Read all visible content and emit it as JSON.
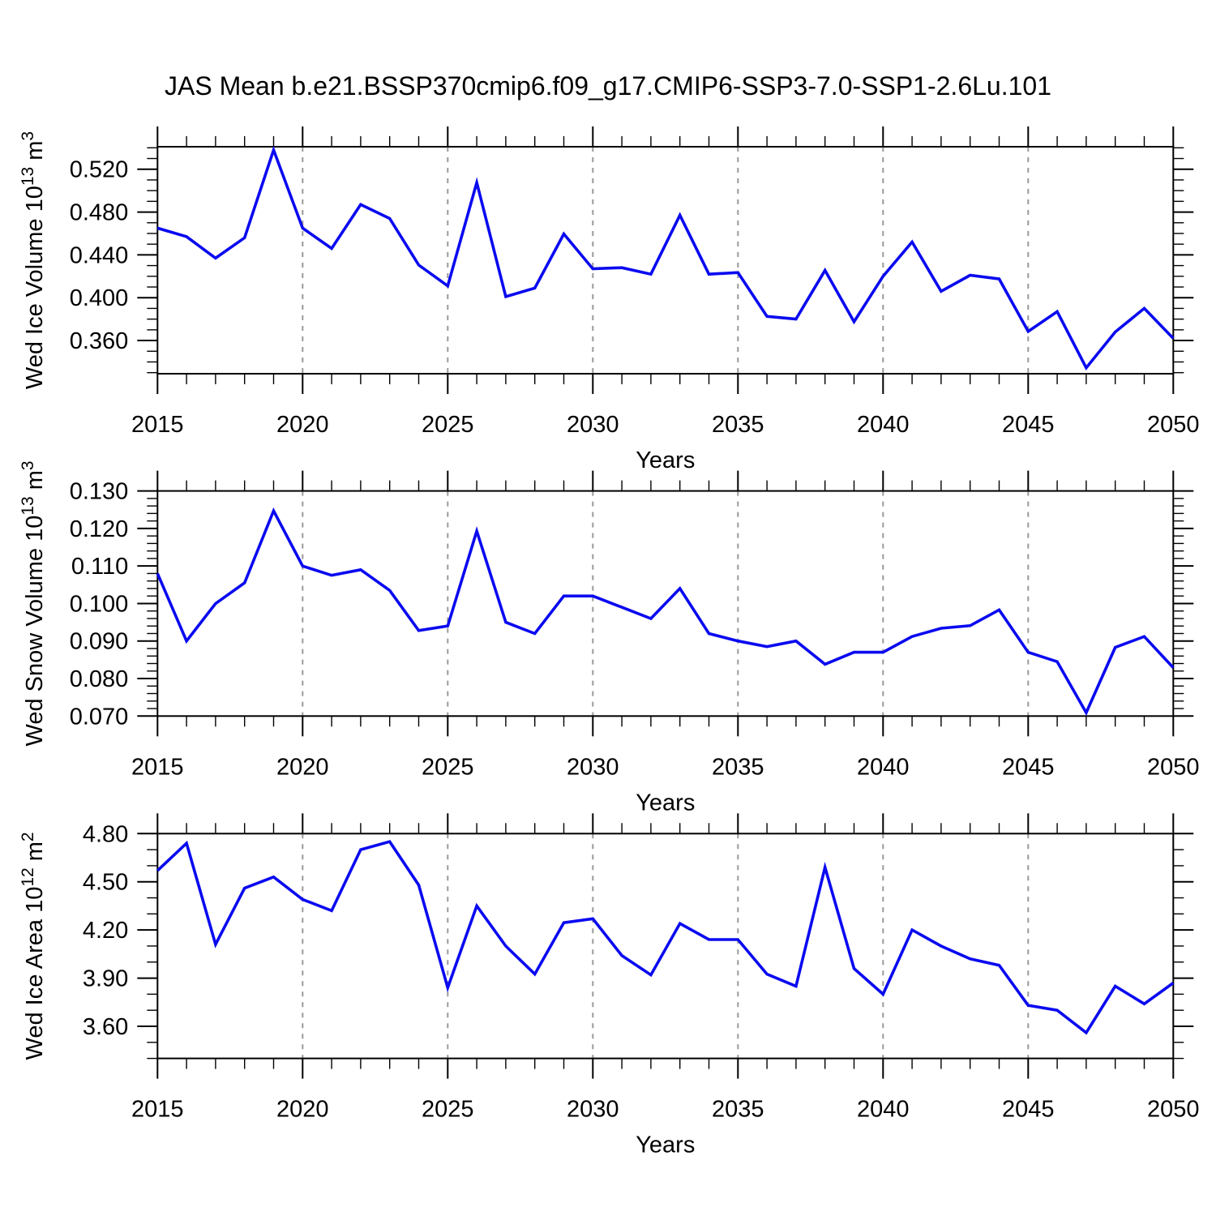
{
  "title": "JAS Mean b.e21.BSSP370cmip6.f09_g17.CMIP6-SSP3-7.0-SSP1-2.6Lu.101",
  "style": {
    "line_color": "#0a0af0",
    "grid_color": "#999999",
    "axis_color": "#000000",
    "text_color": "#000000"
  },
  "chart_data": [
    {
      "type": "line",
      "name": "wed-ice-volume",
      "ylabel_plain": "Wed Ice Volume 10^13 m^3",
      "ylabel_parts": {
        "main": "Wed Ice Volume 10",
        "sup": "13",
        "unit": " m",
        "unit_sup": "3"
      },
      "xlabel": "Years",
      "x": [
        2015,
        2016,
        2017,
        2018,
        2019,
        2020,
        2021,
        2022,
        2023,
        2024,
        2025,
        2026,
        2027,
        2028,
        2029,
        2030,
        2031,
        2032,
        2033,
        2034,
        2035,
        2036,
        2037,
        2038,
        2039,
        2040,
        2041,
        2042,
        2043,
        2044,
        2045,
        2046,
        2047,
        2048,
        2049,
        2050
      ],
      "values": [
        0.465,
        0.457,
        0.437,
        0.456,
        0.538,
        0.465,
        0.446,
        0.487,
        0.474,
        0.4305,
        0.411,
        0.5075,
        0.401,
        0.409,
        0.4595,
        0.427,
        0.428,
        0.422,
        0.477,
        0.422,
        0.4235,
        0.3825,
        0.38,
        0.4255,
        0.3775,
        0.42,
        0.452,
        0.406,
        0.421,
        0.4175,
        0.3685,
        0.387,
        0.3345,
        0.368,
        0.39,
        0.362
      ],
      "ylim": [
        0.329,
        0.541
      ],
      "yticks": [
        0.36,
        0.4,
        0.44,
        0.48,
        0.52
      ],
      "ytick_labels": [
        "0.360",
        "0.400",
        "0.440",
        "0.480",
        "0.520"
      ],
      "yminor_start": 0.33,
      "yminor_step": 0.01,
      "yminor_end": 0.54,
      "xticks": [
        2015,
        2020,
        2025,
        2030,
        2035,
        2040,
        2045,
        2050
      ],
      "xtick_labels": [
        "2015",
        "2020",
        "2025",
        "2030",
        "2035",
        "2040",
        "2045",
        "2050"
      ],
      "grid_years": [
        2020,
        2025,
        2030,
        2035,
        2040,
        2045
      ],
      "xlim": [
        2015,
        2050
      ]
    },
    {
      "type": "line",
      "name": "wed-snow-volume",
      "ylabel_plain": "Wed Snow Volume 10^13 m^3",
      "ylabel_parts": {
        "main": "Wed Snow Volume 10",
        "sup": "13",
        "unit": " m",
        "unit_sup": "3"
      },
      "xlabel": "Years",
      "x": [
        2015,
        2016,
        2017,
        2018,
        2019,
        2020,
        2021,
        2022,
        2023,
        2024,
        2025,
        2026,
        2027,
        2028,
        2029,
        2030,
        2031,
        2032,
        2033,
        2034,
        2035,
        2036,
        2037,
        2038,
        2039,
        2040,
        2041,
        2042,
        2043,
        2044,
        2045,
        2046,
        2047,
        2048,
        2049,
        2050
      ],
      "values": [
        0.108,
        0.09,
        0.1,
        0.1055,
        0.1247,
        0.11,
        0.1075,
        0.109,
        0.1035,
        0.0928,
        0.094,
        0.1193,
        0.095,
        0.092,
        0.102,
        0.102,
        0.099,
        0.096,
        0.104,
        0.092,
        0.09,
        0.0885,
        0.09,
        0.0838,
        0.087,
        0.087,
        0.0912,
        0.0934,
        0.0941,
        0.0983,
        0.087,
        0.0845,
        0.0709,
        0.0883,
        0.0912,
        0.0829
      ],
      "ylim": [
        0.07,
        0.13
      ],
      "yticks": [
        0.07,
        0.08,
        0.09,
        0.1,
        0.11,
        0.12,
        0.13
      ],
      "ytick_labels": [
        "0.070",
        "0.080",
        "0.090",
        "0.100",
        "0.110",
        "0.120",
        "0.130"
      ],
      "yminor_start": 0.07,
      "yminor_step": 0.002,
      "yminor_end": 0.13,
      "xticks": [
        2015,
        2020,
        2025,
        2030,
        2035,
        2040,
        2045,
        2050
      ],
      "xtick_labels": [
        "2015",
        "2020",
        "2025",
        "2030",
        "2035",
        "2040",
        "2045",
        "2050"
      ],
      "grid_years": [
        2020,
        2025,
        2030,
        2035,
        2040,
        2045
      ],
      "xlim": [
        2015,
        2050
      ]
    },
    {
      "type": "line",
      "name": "wed-ice-area",
      "ylabel_plain": "Wed Ice Area 10^12 m^2",
      "ylabel_parts": {
        "main": "Wed Ice Area 10",
        "sup": "12",
        "unit": " m",
        "unit_sup": "2"
      },
      "xlabel": "Years",
      "x": [
        2015,
        2016,
        2017,
        2018,
        2019,
        2020,
        2021,
        2022,
        2023,
        2024,
        2025,
        2026,
        2027,
        2028,
        2029,
        2030,
        2031,
        2032,
        2033,
        2034,
        2035,
        2036,
        2037,
        2038,
        2039,
        2040,
        2041,
        2042,
        2043,
        2044,
        2045,
        2046,
        2047,
        2048,
        2049,
        2050
      ],
      "values": [
        4.57,
        4.74,
        4.11,
        4.46,
        4.53,
        4.39,
        4.32,
        4.7,
        4.75,
        4.48,
        3.84,
        4.35,
        4.1,
        3.925,
        4.245,
        4.27,
        4.04,
        3.92,
        4.24,
        4.14,
        4.14,
        3.925,
        3.85,
        4.59,
        3.96,
        3.8,
        4.2,
        4.1,
        4.02,
        3.98,
        3.73,
        3.7,
        3.56,
        3.85,
        3.74,
        3.87
      ],
      "ylim": [
        3.4,
        4.8
      ],
      "yticks": [
        3.6,
        3.9,
        4.2,
        4.5,
        4.8
      ],
      "ytick_labels": [
        "3.60",
        "3.90",
        "4.20",
        "4.50",
        "4.80"
      ],
      "yminor_start": 3.4,
      "yminor_step": 0.1,
      "yminor_end": 4.8,
      "xticks": [
        2015,
        2020,
        2025,
        2030,
        2035,
        2040,
        2045,
        2050
      ],
      "xtick_labels": [
        "2015",
        "2020",
        "2025",
        "2030",
        "2035",
        "2040",
        "2045",
        "2050"
      ],
      "grid_years": [
        2020,
        2025,
        2030,
        2035,
        2040,
        2045
      ],
      "xlim": [
        2015,
        2050
      ]
    }
  ]
}
